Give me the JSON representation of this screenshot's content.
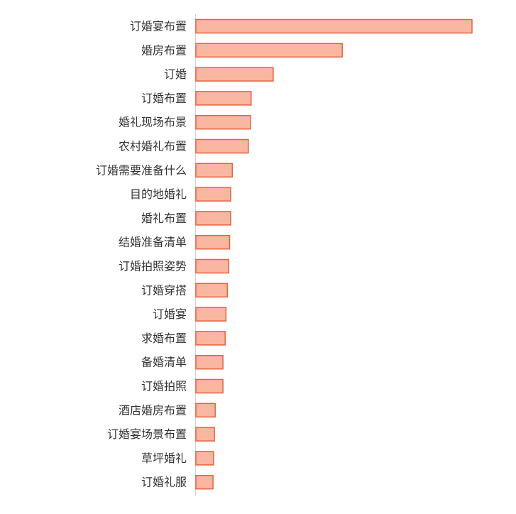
{
  "chart_data": {
    "type": "bar",
    "orientation": "horizontal",
    "title": "",
    "xlabel": "",
    "ylabel": "",
    "grid": false,
    "legend": "none",
    "categories": [
      "订婚宴布置",
      "婚房布置",
      "订婚",
      "订婚布置",
      "婚礼现场布景",
      "农村婚礼布置",
      "订婚需要准备什么",
      "目的地婚礼",
      "婚礼布置",
      "结婚准备清单",
      "订婚拍照姿势",
      "订婚穿搭",
      "订婚宴",
      "求婚布置",
      "备婚清单",
      "订婚拍照",
      "酒店婚房布置",
      "订婚宴场景布置",
      "草坪婚礼",
      "订婚礼服"
    ],
    "values": [
      100,
      53,
      28,
      20,
      19.8,
      19,
      13.2,
      12.6,
      12.6,
      12.2,
      11.9,
      11.4,
      10.9,
      10.6,
      9.8,
      9.8,
      7,
      6.7,
      6.4,
      6.2
    ],
    "xlim": [
      0,
      100
    ]
  },
  "colors": {
    "bar_fill": "#f9b7a1",
    "bar_stroke": "#e8603e",
    "axis": "#d0d0d0",
    "label": "#333333"
  }
}
